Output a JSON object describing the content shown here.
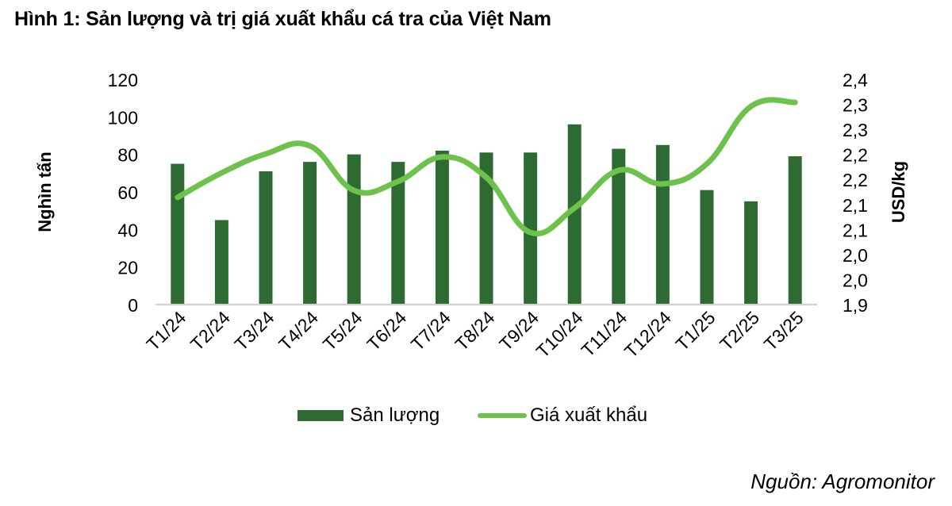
{
  "title": "Hình 1: Sản lượng và trị giá xuất khẩu cá tra của Việt Nam",
  "source": "Nguồn: Agromonitor",
  "colors": {
    "bar": "#2e6b32",
    "line": "#6cc24a",
    "axis": "#d0d0d0"
  },
  "legend": [
    {
      "label": "Sản lượng",
      "type": "bar"
    },
    {
      "label": "Giá xuất khẩu",
      "type": "line"
    }
  ],
  "chart_data": {
    "type": "bar",
    "title": "Hình 1: Sản lượng và trị giá xuất khẩu cá tra của Việt Nam",
    "categories": [
      "T1/24",
      "T2/24",
      "T3/24",
      "T4/24",
      "T5/24",
      "T6/24",
      "T7/24",
      "T8/24",
      "T9/24",
      "T10/24",
      "T11/24",
      "T12/24",
      "T1/25",
      "T2/25",
      "T3/25"
    ],
    "series": [
      {
        "name": "Sản lượng",
        "type": "bar",
        "axis": "left",
        "values": [
          75,
          45,
          71,
          76,
          80,
          76,
          82,
          81,
          81,
          96,
          83,
          85,
          61,
          55,
          79
        ]
      },
      {
        "name": "Giá xuất khẩu",
        "type": "line",
        "smooth": true,
        "axis": "right",
        "values": [
          2.114,
          2.163,
          2.201,
          2.217,
          2.128,
          2.146,
          2.195,
          2.154,
          2.044,
          2.093,
          2.168,
          2.141,
          2.181,
          2.296,
          2.304
        ]
      }
    ],
    "ylabel": "Nghìn tấn",
    "ylim": [
      0,
      120
    ],
    "yticks": [
      "0",
      "20",
      "40",
      "60",
      "80",
      "100",
      "120"
    ],
    "y2label": "USD/kg",
    "y2lim": [
      1.9,
      2.35
    ],
    "y2ticks": [
      "1,9",
      "2,0",
      "2,0",
      "2,1",
      "2,1",
      "2,2",
      "2,2",
      "2,3",
      "2,3",
      "2,4"
    ],
    "xlabel": "",
    "grid": false,
    "legend_position": "bottom"
  }
}
